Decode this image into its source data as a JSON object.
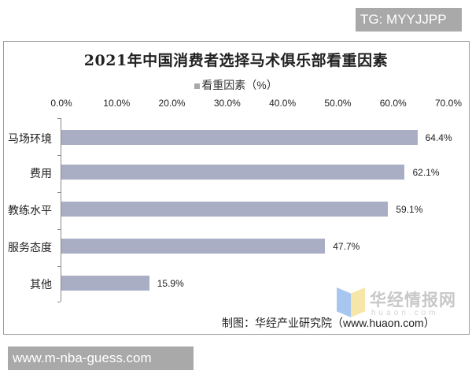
{
  "badges": {
    "top_right": "TG: MYYJJPP",
    "bottom_left": "www.m-nba-guess.com"
  },
  "watermark": {
    "name_cn": "华经情报网",
    "name_en": "huaon.com"
  },
  "source": "制图：华经产业研究院（www.huaon.com）",
  "colors": {
    "bar": "#a9aec4",
    "legend_swatch": "#a9a9a9",
    "badge_bg": "#a9a9a9"
  },
  "chart_data": {
    "type": "bar",
    "orientation": "horizontal",
    "title": "2021年中国消费者选择马术俱乐部看重因素",
    "legend": [
      "看重因素（%）"
    ],
    "legend_position": "top",
    "xlabel": "",
    "ylabel": "",
    "x_ticks": [
      "0.0%",
      "10.0%",
      "20.0%",
      "30.0%",
      "40.0%",
      "50.0%",
      "60.0%",
      "70.0%"
    ],
    "xlim": [
      0,
      70
    ],
    "x_axis_position": "top",
    "grid": false,
    "categories": [
      "马场环境",
      "费用",
      "教练水平",
      "服务态度",
      "其他"
    ],
    "values": [
      64.4,
      62.1,
      59.1,
      47.7,
      15.9
    ],
    "value_labels": [
      "64.4%",
      "62.1%",
      "59.1%",
      "47.7%",
      "15.9%"
    ],
    "series": [
      {
        "name": "看重因素（%）",
        "values": [
          64.4,
          62.1,
          59.1,
          47.7,
          15.9
        ]
      }
    ]
  }
}
